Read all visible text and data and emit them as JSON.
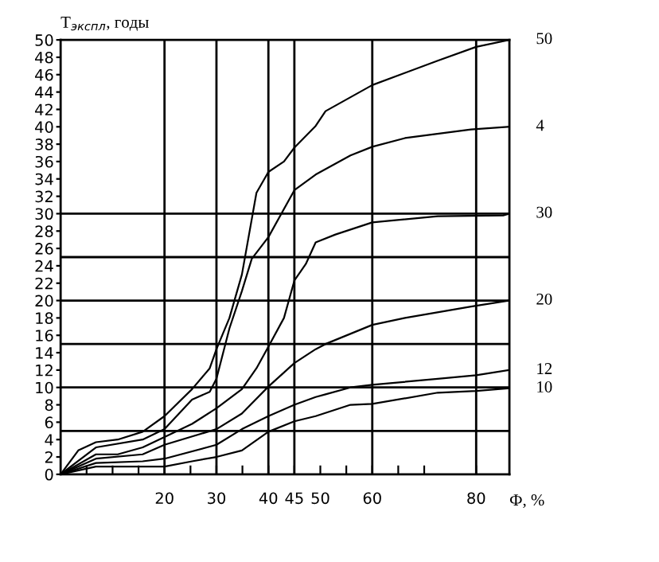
{
  "chart_data": {
    "type": "line",
    "ylabel": "T$_{экспл}$, годы",
    "xlabel": "Ф, %",
    "xlim": [
      0,
      86.4
    ],
    "ylim": [
      0,
      50
    ],
    "xticks": [
      {
        "value": 5,
        "label": null
      },
      {
        "value": 10,
        "label": null
      },
      {
        "value": 15,
        "label": null
      },
      20,
      {
        "value": 25,
        "label": null
      },
      30,
      {
        "value": 35,
        "label": null
      },
      40,
      45,
      50,
      {
        "value": 55,
        "label": null
      },
      60,
      {
        "value": 65,
        "label": null
      },
      {
        "value": 70,
        "label": null
      },
      80
    ],
    "yticks": [
      0,
      2,
      4,
      6,
      8,
      10,
      12,
      14,
      16,
      18,
      20,
      22,
      24,
      26,
      28,
      30,
      32,
      34,
      36,
      38,
      40,
      42,
      44,
      46,
      48,
      50
    ],
    "grid": false,
    "legend": false,
    "marker": "none",
    "line_style": "solid",
    "ref_lines": [
      {
        "axis": "y",
        "value": 5,
        "color": "#000000"
      },
      {
        "axis": "y",
        "value": 10,
        "color": "#000000"
      },
      {
        "axis": "y",
        "value": 15,
        "color": "#000000"
      },
      {
        "axis": "y",
        "value": 20,
        "color": "#000000"
      },
      {
        "axis": "y",
        "value": 25,
        "color": "#000000"
      },
      {
        "axis": "y",
        "value": 30,
        "color": "#000000"
      },
      {
        "axis": "x",
        "value": 20,
        "color": "#000000"
      },
      {
        "axis": "x",
        "value": 30,
        "color": "#000000"
      },
      {
        "axis": "x",
        "value": 40,
        "color": "#000000"
      },
      {
        "axis": "x",
        "value": 45,
        "color": "#000000"
      },
      {
        "axis": "x",
        "value": 60,
        "color": "#000000"
      },
      {
        "axis": "x",
        "value": 80,
        "color": "#000000"
      }
    ],
    "series": [
      {
        "name": "50",
        "color": "#000000",
        "x": [
          0,
          3.4,
          6.8,
          11,
          15.8,
          20,
          25.3,
          28.7,
          30,
          32.5,
          34.9,
          37.7,
          40,
          43,
          45,
          49.1,
          51,
          60,
          72.6,
          80,
          86.4
        ],
        "values": [
          0,
          2.75,
          3.7,
          4,
          4.9,
          6.7,
          9.8,
          12.2,
          14.4,
          18,
          23,
          32.4,
          34.8,
          36,
          37.6,
          40.1,
          41.8,
          44.8,
          47.6,
          49.2,
          50
        ]
      },
      {
        "name": "4",
        "color": "#000000",
        "x": [
          0,
          6.8,
          15.8,
          20,
          25.3,
          28.7,
          30,
          32.5,
          34.9,
          36.8,
          40,
          45,
          49.1,
          55.8,
          60,
          66.3,
          79,
          86.4
        ],
        "values": [
          0,
          3.1,
          4,
          5.2,
          8.6,
          9.5,
          11,
          16.8,
          21.1,
          24.8,
          27.3,
          32.7,
          34.5,
          36.7,
          37.7,
          38.7,
          39.7,
          40
        ]
      },
      {
        "name": "30",
        "color": "#000000",
        "x": [
          0,
          6.8,
          11,
          15.8,
          20,
          25.3,
          30,
          34.9,
          37.7,
          40,
          43,
          45,
          47.2,
          49.1,
          52.9,
          60,
          72.6,
          85.2,
          86.4
        ],
        "values": [
          0,
          2.3,
          2.3,
          3.1,
          4.3,
          5.8,
          7.6,
          9.8,
          12.2,
          14.7,
          18,
          22.3,
          24.2,
          26.7,
          27.6,
          29,
          29.7,
          29.8,
          30
        ]
      },
      {
        "name": "20",
        "color": "#000000",
        "x": [
          0,
          6.8,
          15.8,
          20,
          30,
          34.9,
          40,
          45,
          49.1,
          51,
          60,
          66.3,
          79,
          86.4
        ],
        "values": [
          0,
          1.8,
          2.3,
          3.4,
          5.2,
          7,
          10.1,
          12.8,
          14.4,
          15,
          17.2,
          18,
          19.3,
          20
        ]
      },
      {
        "name": "12",
        "color": "#000000",
        "x": [
          0,
          6.8,
          15.8,
          20,
          30,
          34.9,
          40,
          45,
          49.1,
          51,
          55.8,
          60,
          72.6,
          80,
          86.4
        ],
        "values": [
          0,
          1.3,
          1.5,
          1.8,
          3.4,
          5.2,
          6.7,
          8,
          8.9,
          9.2,
          10,
          10.3,
          11,
          11.4,
          12
        ]
      },
      {
        "name": "10",
        "color": "#000000",
        "x": [
          0,
          6.8,
          20,
          25.3,
          30,
          34.9,
          40,
          45,
          49.1,
          55.8,
          60,
          72.6,
          80,
          86.4
        ],
        "values": [
          0,
          0.9,
          0.9,
          1.5,
          2,
          2.75,
          4.9,
          6.1,
          6.7,
          8,
          8.1,
          9.4,
          9.6,
          9.9
        ]
      }
    ]
  }
}
